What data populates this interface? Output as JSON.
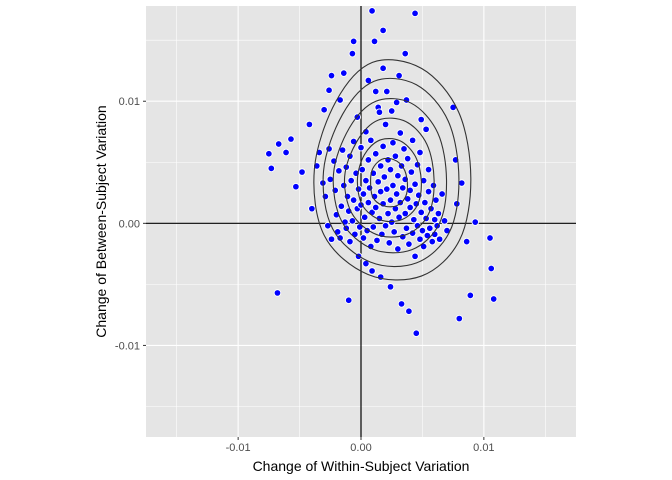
{
  "chart_data": {
    "type": "scatter",
    "title": "",
    "xlabel": "Change of Within-Subject Variation",
    "ylabel": "Change of Between-Subject Variation",
    "xlim": [
      -0.0175,
      0.0175
    ],
    "ylim": [
      -0.0175,
      0.0178
    ],
    "x_ticks": [
      -0.01,
      0.0,
      0.01
    ],
    "x_tick_labels": [
      "-0.01",
      "0.00",
      "0.01"
    ],
    "y_ticks": [
      -0.01,
      0.0,
      0.01
    ],
    "y_tick_labels": [
      "-0.01",
      "0.00",
      "0.01"
    ],
    "grid": true,
    "reference_lines": {
      "x": 0,
      "y": 0
    },
    "colors": {
      "panel": "#e5e5e5",
      "grid": "#ffffff",
      "point_fill": "#0000ff",
      "point_stroke": "#ffffff",
      "contour": "#333333",
      "reference_line": "#000000"
    },
    "points": [
      [
        -0.0075,
        0.0057
      ],
      [
        -0.0073,
        0.0045
      ],
      [
        -0.0067,
        0.0065
      ],
      [
        -0.0061,
        0.0058
      ],
      [
        -0.0057,
        0.0069
      ],
      [
        -0.0053,
        0.003
      ],
      [
        -0.0048,
        0.0042
      ],
      [
        -0.0042,
        0.0081
      ],
      [
        -0.004,
        0.0012
      ],
      [
        -0.0036,
        0.0047
      ],
      [
        -0.0034,
        0.0058
      ],
      [
        -0.0031,
        0.0033
      ],
      [
        -0.003,
        0.0093
      ],
      [
        -0.0029,
        0.0022
      ],
      [
        -0.0027,
        -0.0002
      ],
      [
        -0.0026,
        0.0061
      ],
      [
        -0.0025,
        0.0036
      ],
      [
        -0.0024,
        -0.0013
      ],
      [
        -0.0022,
        0.0051
      ],
      [
        -0.0021,
        0.0027
      ],
      [
        -0.002,
        0.0007
      ],
      [
        -0.0019,
        -0.0007
      ],
      [
        -0.0018,
        0.0043
      ],
      [
        -0.0017,
        -0.0012
      ],
      [
        -0.0016,
        0.0014
      ],
      [
        -0.0015,
        0.006
      ],
      [
        -0.0014,
        0.0031
      ],
      [
        -0.0013,
        0.0001
      ],
      [
        -0.0012,
        -0.0004
      ],
      [
        -0.0012,
        0.0046
      ],
      [
        -0.0011,
        0.0022
      ],
      [
        -0.001,
        0.001
      ],
      [
        -0.0009,
        -0.0015
      ],
      [
        -0.0009,
        0.0055
      ],
      [
        -0.0008,
        0.0035
      ],
      [
        -0.0007,
        0.0002
      ],
      [
        -0.0006,
        0.0067
      ],
      [
        -0.0006,
        0.0019
      ],
      [
        -0.0005,
        -0.0009
      ],
      [
        -0.0004,
        0.0041
      ],
      [
        -0.0003,
        0.0012
      ],
      [
        -0.0003,
        0.0087
      ],
      [
        -0.0002,
        0.0028
      ],
      [
        -0.0001,
        -0.0003
      ],
      [
        0.0,
        0.0062
      ],
      [
        0.0,
        0.0015
      ],
      [
        0.0001,
        0.0044
      ],
      [
        0.0002,
        -0.0012
      ],
      [
        0.0002,
        0.0024
      ],
      [
        0.0003,
        0.0005
      ],
      [
        0.0004,
        0.0075
      ],
      [
        0.0004,
        0.0035
      ],
      [
        0.0005,
        -0.0006
      ],
      [
        0.0006,
        0.0052
      ],
      [
        0.0006,
        0.0017
      ],
      [
        0.0007,
        0.0029
      ],
      [
        0.0008,
        -0.0019
      ],
      [
        0.0008,
        0.0068
      ],
      [
        0.0009,
        0.0009
      ],
      [
        0.001,
        0.0041
      ],
      [
        0.001,
        -0.0003
      ],
      [
        0.0011,
        0.0022
      ],
      [
        0.0012,
        0.0057
      ],
      [
        0.0012,
        0.0013
      ],
      [
        0.0013,
        -0.0014
      ],
      [
        0.0014,
        0.0034
      ],
      [
        0.0014,
        0.0095
      ],
      [
        0.0015,
        0.0004
      ],
      [
        0.0016,
        0.0047
      ],
      [
        0.0016,
        0.0026
      ],
      [
        0.0017,
        -0.0009
      ],
      [
        0.0018,
        0.0063
      ],
      [
        0.0018,
        0.0016
      ],
      [
        0.0019,
        0.0038
      ],
      [
        0.002,
        -0.0002
      ],
      [
        0.002,
        0.0081
      ],
      [
        0.0021,
        0.0028
      ],
      [
        0.0022,
        0.0008
      ],
      [
        0.0022,
        0.0052
      ],
      [
        0.0023,
        -0.0016
      ],
      [
        0.0024,
        0.0019
      ],
      [
        0.0024,
        0.0044
      ],
      [
        0.0025,
        0.0001
      ],
      [
        0.0026,
        0.0066
      ],
      [
        0.0026,
        0.0031
      ],
      [
        0.0027,
        -0.0007
      ],
      [
        0.0028,
        0.0012
      ],
      [
        0.0028,
        0.0055
      ],
      [
        0.0029,
        0.0024
      ],
      [
        0.003,
        -0.0021
      ],
      [
        0.003,
        0.0039
      ],
      [
        0.0031,
        0.0005
      ],
      [
        0.0032,
        0.0074
      ],
      [
        0.0032,
        0.0017
      ],
      [
        0.0033,
        0.0047
      ],
      [
        0.0034,
        -0.0011
      ],
      [
        0.0034,
        0.0029
      ],
      [
        0.0035,
        0.0061
      ],
      [
        0.0036,
        0.0008
      ],
      [
        0.0036,
        0.0036
      ],
      [
        0.0037,
        -0.0004
      ],
      [
        0.0038,
        0.002
      ],
      [
        0.0038,
        0.0053
      ],
      [
        0.0039,
        -0.0017
      ],
      [
        0.004,
        0.0027
      ],
      [
        0.004,
        0.0013
      ],
      [
        0.0041,
        0.0042
      ],
      [
        0.0042,
        -0.0008
      ],
      [
        0.0042,
        0.0068
      ],
      [
        0.0043,
        0.0003
      ],
      [
        0.0044,
        0.0032
      ],
      [
        0.0044,
        -0.0027
      ],
      [
        0.0045,
        0.0016
      ],
      [
        0.0046,
        0.0048
      ],
      [
        0.0046,
        -0.0002
      ],
      [
        0.0047,
        0.0023
      ],
      [
        0.0048,
        -0.0013
      ],
      [
        0.0048,
        0.0058
      ],
      [
        0.0049,
        0.0009
      ],
      [
        0.005,
        -0.0006
      ],
      [
        0.0051,
        0.0035
      ],
      [
        0.0051,
        -0.0019
      ],
      [
        0.0052,
        0.0017
      ],
      [
        0.0053,
        0.0004
      ],
      [
        0.0054,
        -0.001
      ],
      [
        0.0055,
        0.0044
      ],
      [
        0.0055,
        0.0026
      ],
      [
        0.0056,
        -0.0004
      ],
      [
        0.0057,
        0.0012
      ],
      [
        0.0058,
        -0.0015
      ],
      [
        0.0059,
        0.0031
      ],
      [
        0.006,
        0.0003
      ],
      [
        0.006,
        -0.0009
      ],
      [
        0.0061,
        0.0019
      ],
      [
        0.0062,
        -0.0002
      ],
      [
        0.0063,
        0.0008
      ],
      [
        0.0064,
        -0.0013
      ],
      [
        0.0066,
        0.0024
      ],
      [
        0.0068,
        0.0002
      ],
      [
        0.007,
        -0.0006
      ],
      [
        0.0075,
        0.0095
      ],
      [
        0.0077,
        0.0052
      ],
      [
        0.0078,
        0.0016
      ],
      [
        0.008,
        -0.0078
      ],
      [
        0.0082,
        0.0033
      ],
      [
        0.0086,
        -0.0015
      ],
      [
        0.0089,
        -0.0059
      ],
      [
        0.0093,
        0.0001
      ],
      [
        0.0105,
        -0.0012
      ],
      [
        0.0106,
        -0.0037
      ],
      [
        0.0108,
        -0.0062
      ],
      [
        -0.0068,
        -0.0057
      ],
      [
        -0.001,
        -0.0063
      ],
      [
        0.0045,
        -0.009
      ],
      [
        0.0039,
        -0.0072
      ],
      [
        0.0033,
        -0.0066
      ],
      [
        0.0024,
        -0.0052
      ],
      [
        0.0016,
        -0.0044
      ],
      [
        0.0009,
        -0.0039
      ],
      [
        0.0004,
        -0.0033
      ],
      [
        -0.0002,
        -0.0027
      ],
      [
        -0.0007,
        0.0139
      ],
      [
        -0.0014,
        0.0123
      ],
      [
        -0.0024,
        0.0121
      ],
      [
        0.0006,
        0.0117
      ],
      [
        0.0012,
        0.0108
      ],
      [
        0.0018,
        0.0127
      ],
      [
        0.0031,
        0.0121
      ],
      [
        0.0036,
        0.0139
      ],
      [
        0.0044,
        0.0172
      ],
      [
        0.0009,
        0.0174
      ],
      [
        -0.0003,
        0.0181
      ],
      [
        0.0018,
        0.0158
      ],
      [
        0.0011,
        0.0149
      ],
      [
        -0.0006,
        0.0149
      ],
      [
        0.0021,
        0.0108
      ],
      [
        0.0029,
        0.0099
      ],
      [
        0.0037,
        0.0101
      ],
      [
        0.0015,
        0.0091
      ],
      [
        0.0025,
        0.0092
      ],
      [
        -0.0017,
        0.0101
      ],
      [
        -0.0026,
        0.0109
      ],
      [
        0.0049,
        0.0085
      ],
      [
        0.0053,
        0.0077
      ]
    ],
    "contours": [
      [
        [
          0.00078,
          0.00341
        ],
        [
          0.00097,
          0.00212
        ],
        [
          0.00186,
          0.00143
        ],
        [
          0.00292,
          0.00145
        ],
        [
          0.00364,
          0.00221
        ],
        [
          0.00377,
          0.00337
        ],
        [
          0.00345,
          0.00455
        ],
        [
          0.00264,
          0.00523
        ],
        [
          0.00166,
          0.00523
        ],
        [
          0.00094,
          0.00445
        ]
      ],
      [
        [
          -0.00029,
          0.00361
        ],
        [
          0.00011,
          0.00149
        ],
        [
          0.00155,
          0.00029
        ],
        [
          0.00332,
          0.0003
        ],
        [
          0.00458,
          0.00147
        ],
        [
          0.00491,
          0.00344
        ],
        [
          0.00442,
          0.00549
        ],
        [
          0.00315,
          0.00677
        ],
        [
          0.00152,
          0.00681
        ],
        [
          0.00027,
          0.00561
        ]
      ],
      [
        [
          -0.00133,
          0.00384
        ],
        [
          -0.00075,
          0.00083
        ],
        [
          0.00127,
          -0.00092
        ],
        [
          0.00372,
          -0.00091
        ],
        [
          0.00547,
          0.0007
        ],
        [
          0.00595,
          0.00352
        ],
        [
          0.00536,
          0.00648
        ],
        [
          0.00366,
          0.00833
        ],
        [
          0.0014,
          0.00845
        ],
        [
          -0.00031,
          0.00675
        ]
      ],
      [
        [
          -0.00224,
          0.00403
        ],
        [
          -0.00155,
          0.00012
        ],
        [
          0.00101,
          -0.00213
        ],
        [
          0.00415,
          -0.00215
        ],
        [
          0.00636,
          -5e-05
        ],
        [
          0.00696,
          0.00357
        ],
        [
          0.00624,
          0.00742
        ],
        [
          0.00407,
          0.00985
        ],
        [
          0.00121,
          0.01
        ],
        [
          -0.00095,
          0.00781
        ]
      ],
      [
        [
          -0.00305,
          0.00427
        ],
        [
          -0.00231,
          -0.00044
        ],
        [
          0.00078,
          -0.00318
        ],
        [
          0.00452,
          -0.00324
        ],
        [
          0.00719,
          -0.00074
        ],
        [
          0.00797,
          0.00361
        ],
        [
          0.00711,
          0.00835
        ],
        [
          0.00451,
          0.01135
        ],
        [
          0.00107,
          0.01164
        ],
        [
          -0.0015,
          0.00893
        ]
      ],
      [
        [
          -0.00379,
          0.00448
        ],
        [
          -0.00299,
          -0.001
        ],
        [
          0.00057,
          -0.00419
        ],
        [
          0.00494,
          -0.00431
        ],
        [
          0.00802,
          -0.00138
        ],
        [
          0.00894,
          0.00369
        ],
        [
          0.00794,
          0.00913
        ],
        [
          0.00494,
          0.01268
        ],
        [
          0.00093,
          0.01318
        ],
        [
          -0.00205,
          0.00997
        ]
      ]
    ]
  }
}
